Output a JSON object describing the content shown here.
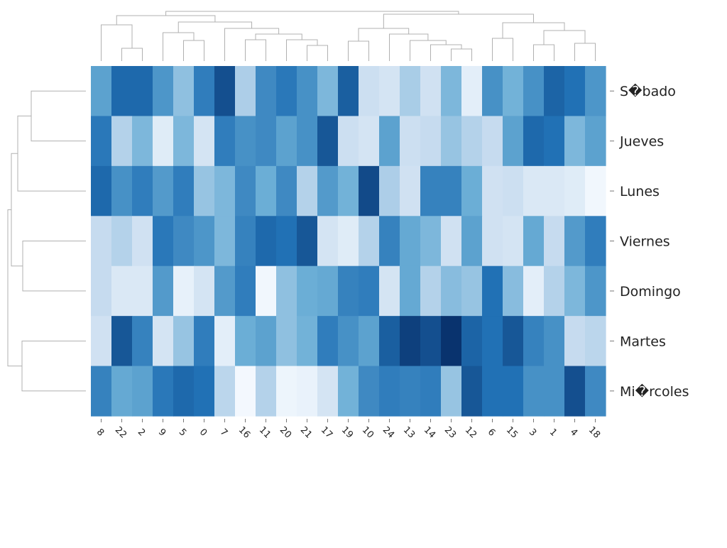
{
  "chart_data": {
    "type": "heatmap",
    "title": "",
    "colormap": [
      "#f7fbff",
      "#c6dbef",
      "#6baed6",
      "#2171b5",
      "#08306b"
    ],
    "rows": [
      "S�bado",
      "Jueves",
      "Lunes",
      "Viernes",
      "Domingo",
      "Martes",
      "Mi�rcoles"
    ],
    "columns": [
      "8",
      "22",
      "2",
      "9",
      "5",
      "0",
      "7",
      "16",
      "11",
      "20",
      "21",
      "17",
      "19",
      "10",
      "24",
      "13",
      "14",
      "23",
      "12",
      "6",
      "15",
      "3",
      "1",
      "4",
      "18"
    ],
    "values": [
      [
        0.55,
        0.78,
        0.78,
        0.6,
        0.4,
        0.7,
        0.88,
        0.32,
        0.65,
        0.72,
        0.62,
        0.45,
        0.82,
        0.22,
        0.18,
        0.33,
        0.2,
        0.45,
        0.1,
        0.62,
        0.48,
        0.62,
        0.8,
        0.75,
        0.6
      ],
      [
        0.72,
        0.3,
        0.45,
        0.12,
        0.45,
        0.18,
        0.7,
        0.62,
        0.65,
        0.55,
        0.62,
        0.85,
        0.22,
        0.18,
        0.55,
        0.22,
        0.25,
        0.38,
        0.3,
        0.25,
        0.55,
        0.78,
        0.75,
        0.45,
        0.55
      ],
      [
        0.78,
        0.62,
        0.7,
        0.58,
        0.7,
        0.38,
        0.45,
        0.65,
        0.5,
        0.65,
        0.3,
        0.58,
        0.48,
        0.9,
        0.32,
        0.2,
        0.68,
        0.68,
        0.5,
        0.2,
        0.22,
        0.15,
        0.15,
        0.12,
        0.03
      ],
      [
        0.25,
        0.3,
        0.2,
        0.72,
        0.65,
        0.6,
        0.45,
        0.68,
        0.78,
        0.75,
        0.85,
        0.18,
        0.12,
        0.3,
        0.68,
        0.52,
        0.45,
        0.2,
        0.55,
        0.2,
        0.18,
        0.52,
        0.25,
        0.58,
        0.7
      ],
      [
        0.25,
        0.15,
        0.15,
        0.58,
        0.08,
        0.18,
        0.58,
        0.7,
        0.03,
        0.4,
        0.5,
        0.52,
        0.68,
        0.7,
        0.18,
        0.52,
        0.3,
        0.42,
        0.38,
        0.75,
        0.42,
        0.1,
        0.3,
        0.45,
        0.6
      ],
      [
        0.2,
        0.85,
        0.68,
        0.18,
        0.38,
        0.7,
        0.1,
        0.5,
        0.55,
        0.4,
        0.48,
        0.7,
        0.62,
        0.55,
        0.82,
        0.94,
        0.88,
        0.99,
        0.8,
        0.75,
        0.85,
        0.68,
        0.62,
        0.25,
        0.28
      ],
      [
        0.68,
        0.52,
        0.55,
        0.72,
        0.78,
        0.75,
        0.28,
        0.02,
        0.3,
        0.05,
        0.07,
        0.18,
        0.48,
        0.65,
        0.7,
        0.68,
        0.7,
        0.38,
        0.85,
        0.75,
        0.75,
        0.62,
        0.62,
        0.88,
        0.65
      ]
    ],
    "row_dendrogram": [
      [
        5,
        6
      ],
      [
        3,
        4
      ],
      [
        7,
        8
      ],
      [
        1,
        2
      ],
      [
        0,
        10
      ],
      [
        9,
        11
      ]
    ],
    "column_dendrogram": [
      [
        1,
        2
      ],
      [
        3,
        4
      ],
      [
        19,
        20
      ],
      [
        12,
        13
      ],
      [
        17,
        18
      ],
      [
        24,
        25
      ],
      [
        0,
        25
      ],
      [
        5,
        26
      ],
      [
        9,
        10
      ],
      [
        15,
        16
      ],
      [
        8,
        33
      ],
      [
        16,
        34
      ],
      [
        22,
        23
      ],
      [
        7,
        35
      ],
      [
        11,
        27
      ],
      [
        14,
        30
      ],
      [
        21,
        37
      ],
      [
        27,
        32
      ],
      [
        31,
        36
      ],
      [
        6,
        33
      ],
      [
        28,
        38
      ],
      [
        34,
        39
      ],
      [
        0,
        0
      ],
      [
        0,
        0
      ]
    ]
  }
}
